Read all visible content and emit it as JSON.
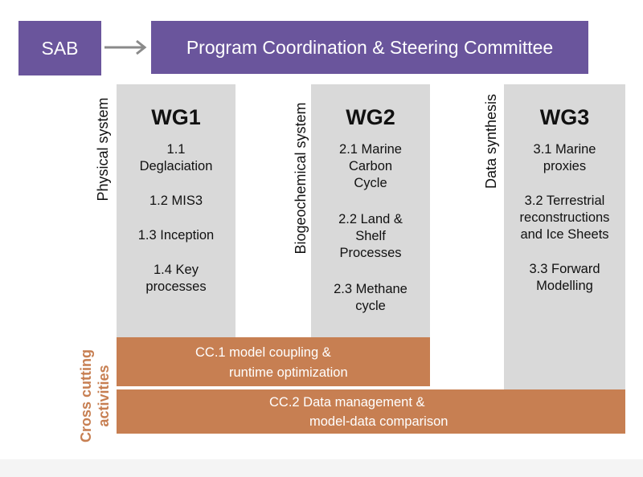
{
  "header": {
    "sab_label": "SAB",
    "committee_label": "Program Coordination & Steering Committee"
  },
  "side_labels": {
    "physical": "Physical system",
    "biogeochemical": "Biogeochemical system",
    "data": "Data synthesis",
    "cross_cutting": "Cross cutting\nactivities"
  },
  "wg1": {
    "title": "WG1",
    "items": [
      "1.1\nDeglaciation",
      "1.2 MIS3",
      "1.3 Inception",
      "1.4 Key\nprocesses"
    ]
  },
  "wg2": {
    "title": "WG2",
    "items": [
      "2.1 Marine\nCarbon\nCycle",
      "2.2 Land &\nShelf\nProcesses",
      "2.3 Methane\ncycle"
    ]
  },
  "wg3": {
    "title": "WG3",
    "items": [
      "3.1 Marine\nproxies",
      "3.2 Terrestrial\nreconstructions\nand Ice Sheets",
      "3.3 Forward\nModelling"
    ]
  },
  "cc1": {
    "line1": "CC.1 model coupling &",
    "line2": "runtime optimization"
  },
  "cc2": {
    "line1": "CC.2 Data management &",
    "line2": "model-data comparison"
  },
  "colors": {
    "purple": "#6a559c",
    "grey": "#d9d9d9",
    "orange": "#c77f52"
  }
}
